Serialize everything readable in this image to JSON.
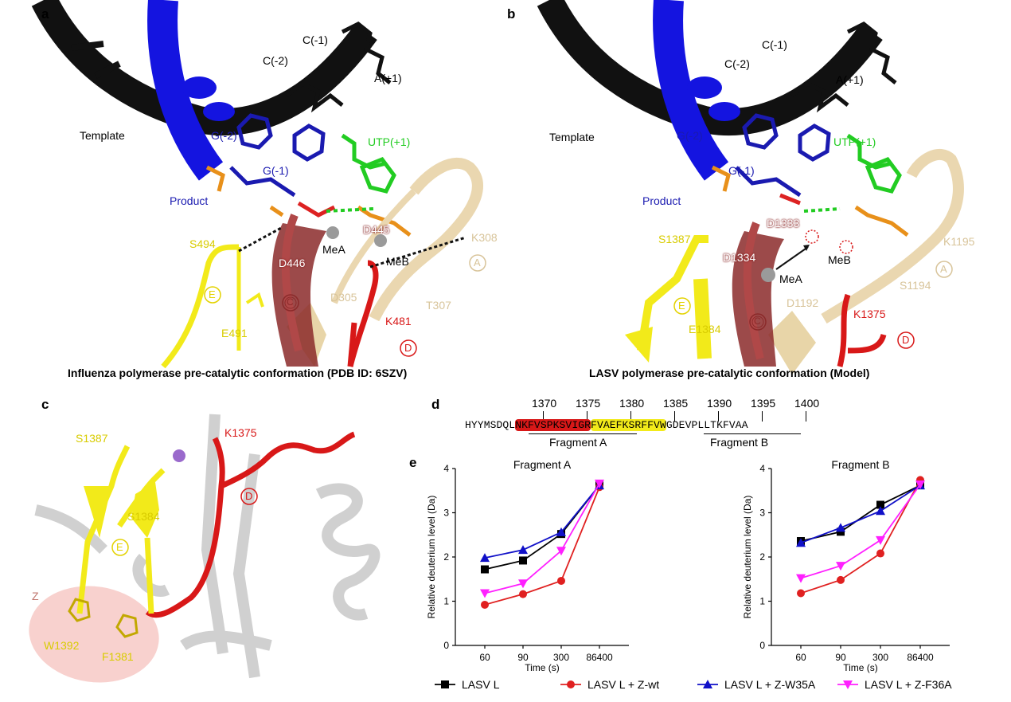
{
  "panels": {
    "a": {
      "letter": "a",
      "caption": "Influenza polymerase pre-catalytic conformation (PDB ID: 6SZV)",
      "labels": {
        "c1": "C(-1)",
        "c2": "C(-2)",
        "a1": "A(+1)",
        "template": "Template",
        "g2": "G(-2)",
        "g1": "G(-1)",
        "utp": "UTP(+1)",
        "product": "Product",
        "s": "S494",
        "d445": "D445",
        "mea": "MeA",
        "meb": "MeB",
        "k": "K308",
        "d446": "D446",
        "e491": "E491",
        "d305": "D305",
        "t307": "T307",
        "k481": "K481",
        "motif_e": "E",
        "motif_c": "C",
        "motif_d": "D",
        "motif_a": "A"
      }
    },
    "b": {
      "letter": "b",
      "caption": "LASV polymerase pre-catalytic conformation (Model)",
      "labels": {
        "c1": "C(-1)",
        "c2": "C(-2)",
        "a1": "A(+1)",
        "template": "Template",
        "g2": "G(-2)",
        "g1": "G(-1)",
        "utp": "UTP(+1)",
        "product": "Product",
        "d1333": "D1333",
        "s1387": "S1387",
        "k1195": "K1195",
        "d1334": "D1334",
        "meb": "MeB",
        "mea": "MeA",
        "s1194": "S1194",
        "d1192": "D1192",
        "k1375": "K1375",
        "e1384": "E1384",
        "motif_e": "E",
        "motif_c": "C",
        "motif_d": "D",
        "motif_a": "A"
      }
    },
    "c": {
      "letter": "c",
      "labels": {
        "s1387": "S1387",
        "k1375": "K1375",
        "s1384": "S1384",
        "z": "Z",
        "w1392": "W1392",
        "f1381": "F1381",
        "motif_e": "E",
        "motif_d": "D"
      }
    },
    "d": {
      "letter": "d",
      "positions": [
        "1370",
        "1375",
        "1380",
        "1385",
        "1390",
        "1395",
        "1400"
      ],
      "seq_pre": "HYYMSDQL",
      "seq_red": "NKFVSPKSVIGR",
      "seq_yellow": "FVAEFKSRFFVW",
      "seq_post": "GDEVPLLTKFVAA",
      "fragment_a": "Fragment A",
      "fragment_b": "Fragment B"
    },
    "e": {
      "letter": "e"
    }
  },
  "colors": {
    "black": "#000000",
    "red": "#e02020",
    "blue": "#1010c8",
    "magenta": "#ff20ff",
    "yellow": "#f2ea1a",
    "wheat": "#ead7b0",
    "darkred": "#8b2a2a",
    "green": "#22cc22",
    "product_blue": "#1a1ab0",
    "motif_d_red": "#d81818",
    "ribbon_blue": "#1414e0",
    "z_pink": "#f6c6c2"
  },
  "chart_data": [
    {
      "type": "line",
      "title": "Fragment A",
      "xlabel": "Time (s)",
      "ylabel": "Relative deuterium level (Da)",
      "categories": [
        "60",
        "90",
        "300",
        "86400"
      ],
      "ylim": [
        0,
        4
      ],
      "yticks": [
        "0",
        "1",
        "2",
        "3",
        "4"
      ],
      "series": [
        {
          "name": "LASV L",
          "color": "#000000",
          "marker": "square",
          "values": [
            1.72,
            1.92,
            2.52,
            3.62
          ]
        },
        {
          "name": "LASV L + Z-wt",
          "color": "#e02020",
          "marker": "circle",
          "values": [
            0.92,
            1.16,
            1.46,
            3.58
          ]
        },
        {
          "name": "LASV L + Z-W35A",
          "color": "#1010c8",
          "marker": "triangle-up",
          "values": [
            1.98,
            2.16,
            2.56,
            3.62
          ]
        },
        {
          "name": "LASV L + Z-F36A",
          "color": "#ff20ff",
          "marker": "triangle-down",
          "values": [
            1.18,
            1.4,
            2.14,
            3.66
          ]
        }
      ]
    },
    {
      "type": "line",
      "title": "Fragment B",
      "xlabel": "Time (s)",
      "ylabel": "Relative deuterium level (Da)",
      "categories": [
        "60",
        "90",
        "300",
        "86400"
      ],
      "ylim": [
        0,
        4
      ],
      "yticks": [
        "0",
        "1",
        "2",
        "3",
        "4"
      ],
      "series": [
        {
          "name": "LASV L",
          "color": "#000000",
          "marker": "square",
          "values": [
            2.36,
            2.57,
            3.18,
            3.62
          ]
        },
        {
          "name": "LASV L + Z-wt",
          "color": "#e02020",
          "marker": "circle",
          "values": [
            1.18,
            1.48,
            2.08,
            3.74
          ]
        },
        {
          "name": "LASV L + Z-W35A",
          "color": "#1010c8",
          "marker": "triangle-up",
          "values": [
            2.32,
            2.66,
            3.04,
            3.62
          ]
        },
        {
          "name": "LASV L + Z-F36A",
          "color": "#ff20ff",
          "marker": "triangle-down",
          "values": [
            1.52,
            1.8,
            2.38,
            3.64
          ]
        }
      ]
    }
  ]
}
